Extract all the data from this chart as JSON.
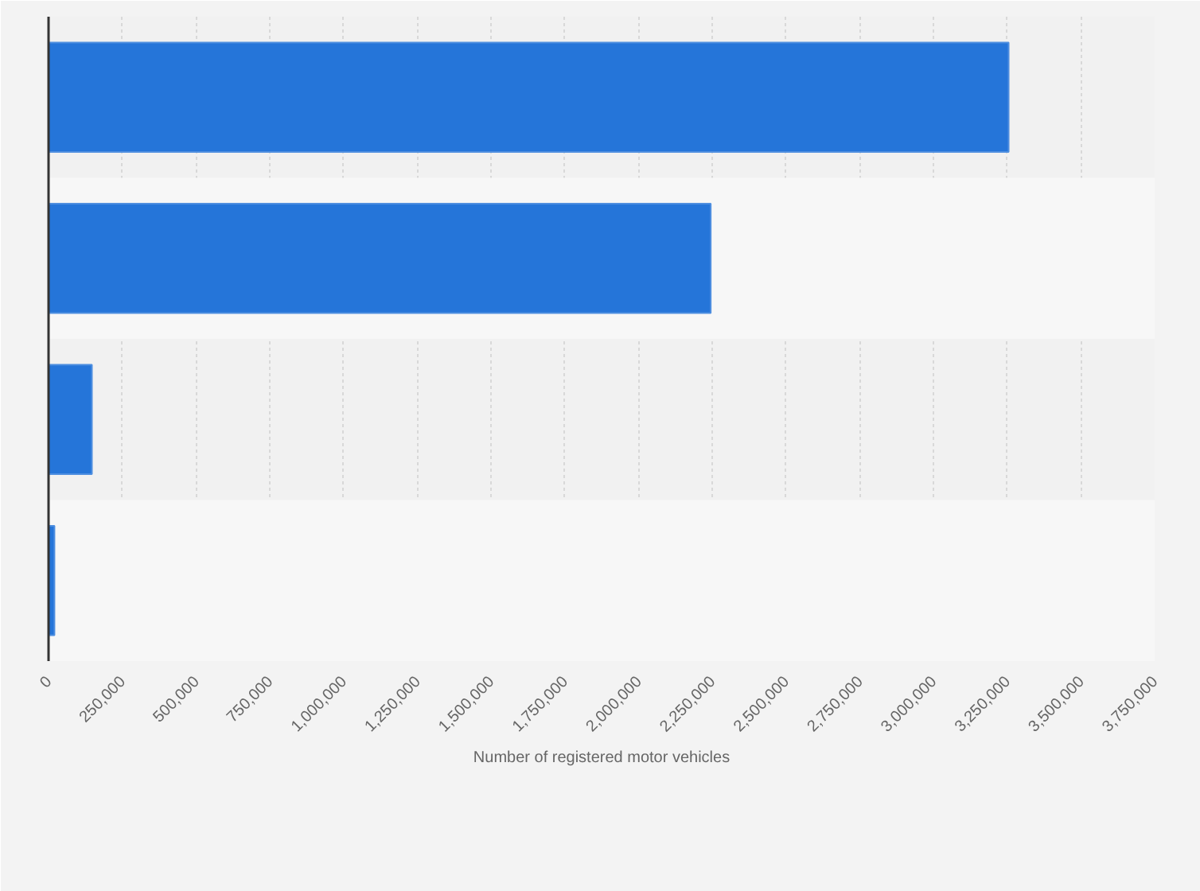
{
  "chart_data": {
    "type": "bar",
    "orientation": "horizontal",
    "xlabel": "Number of registered motor vehicles",
    "categories": [
      null,
      null,
      null,
      null
    ],
    "values": [
      3255000,
      2245000,
      147000,
      20000
    ],
    "color": "#2575d9",
    "xlim": [
      0,
      3750000
    ],
    "xticks": [
      0,
      {
        "value": 250000,
        "label": "250,000"
      },
      {
        "value": 500000,
        "label": "500,000"
      },
      {
        "value": 750000,
        "label": "750,000"
      },
      {
        "value": 1000000,
        "label": "1,000,000"
      },
      {
        "value": 1250000,
        "label": "1,250,000"
      },
      {
        "value": 1500000,
        "label": "1,500,000"
      },
      {
        "value": 1750000,
        "label": "1,750,000"
      },
      {
        "value": 2000000,
        "label": "2,000,000"
      },
      {
        "value": 2250000,
        "label": "2,250,000"
      },
      {
        "value": 2500000,
        "label": "2,500,000"
      },
      {
        "value": 2750000,
        "label": "2,750,000"
      },
      {
        "value": 3000000,
        "label": "3,000,000"
      },
      {
        "value": 3250000,
        "label": "3,250,000"
      },
      {
        "value": 3500000,
        "label": "3,500,000"
      },
      {
        "value": 3750000,
        "label": "3,750,000"
      }
    ],
    "grid": "x",
    "tick_labels": "x"
  }
}
